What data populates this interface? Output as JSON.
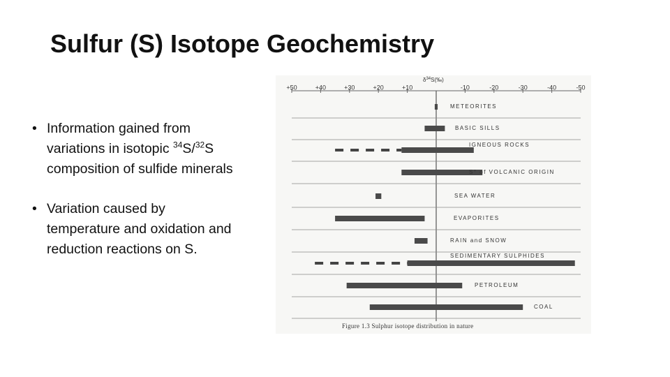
{
  "slide": {
    "title": "Sulfur (S) Isotope Geochemistry",
    "bullets": [
      [
        "Information gained from variations in isotopic ",
        "34",
        "S/",
        "32",
        "S composition of sulfide minerals"
      ],
      [
        "Variation caused by temperature and oxidation and reduction reactions on S."
      ]
    ]
  },
  "figure": {
    "type": "range-bar",
    "axis_label": [
      "δ",
      "34",
      "S(‰)"
    ],
    "xlim": [
      50,
      -50
    ],
    "xticks": [
      {
        "value": 50,
        "label": "+50"
      },
      {
        "value": 40,
        "label": "+40"
      },
      {
        "value": 30,
        "label": "+30"
      },
      {
        "value": 20,
        "label": "+20"
      },
      {
        "value": 10,
        "label": "+10"
      },
      -10,
      -20,
      -30,
      -40,
      -50
    ],
    "rows": [
      {
        "label": "METEORITES",
        "low": -0.5,
        "high": 0.5
      },
      {
        "label": "BASIC SILLS",
        "low": -3,
        "high": 4
      },
      {
        "label": "IGNEOUS ROCKS",
        "low": -13,
        "high": 12,
        "extended": 35
      },
      {
        "label": "S° of VOLCANIC ORIGIN",
        "low": -16,
        "high": 12
      },
      {
        "label": "SEA WATER",
        "low": 19,
        "high": 21
      },
      {
        "label": "EVAPORITES",
        "low": 4,
        "high": 35
      },
      {
        "label": "RAIN and SNOW",
        "low": 3,
        "high": 7.5
      },
      {
        "label": "SEDIMENTARY SULPHIDES",
        "low": -48,
        "high": 10,
        "extended": 42
      },
      {
        "label": "PETROLEUM",
        "low": -9,
        "high": 31
      },
      {
        "label": "COAL",
        "low": -30,
        "high": 23
      }
    ],
    "caption": "Figure 1.3 Sulphur isotope distribution in nature"
  }
}
